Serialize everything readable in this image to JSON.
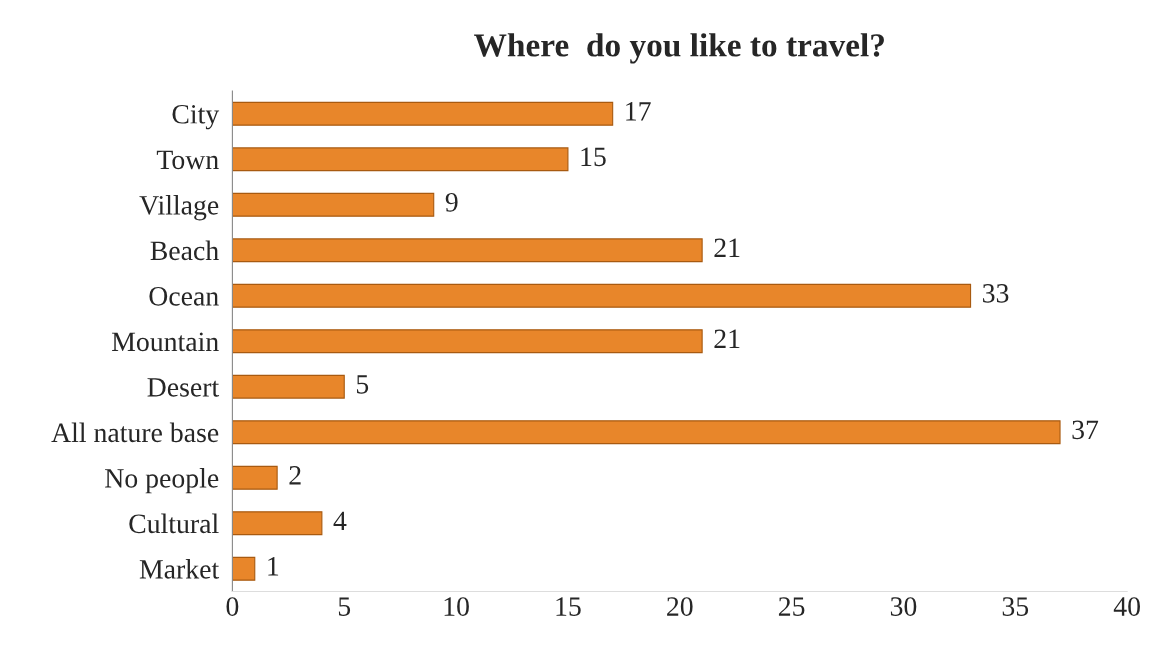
{
  "chart_data": {
    "type": "bar",
    "orientation": "horizontal",
    "title": "Where  do you like to travel?",
    "categories": [
      "City",
      "Town",
      "Village",
      "Beach",
      "Ocean",
      "Mountain",
      "Desert",
      "All nature base",
      "No people",
      "Cultural",
      "Market"
    ],
    "values": [
      17,
      15,
      9,
      21,
      33,
      21,
      5,
      37,
      2,
      4,
      1
    ],
    "color": "#e8862a",
    "xlim": [
      0,
      40
    ],
    "xticks": [
      0,
      5,
      10,
      15,
      20,
      25,
      30,
      35,
      40
    ],
    "data_labels": true
  }
}
